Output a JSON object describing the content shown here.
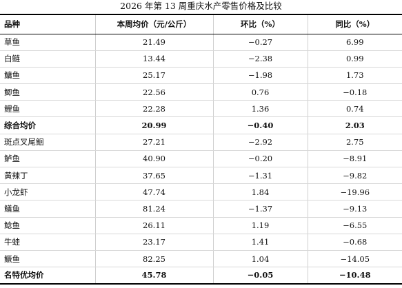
{
  "title": "2026 年第 13 周重庆水产零售价格及比较",
  "headers": [
    "品种",
    "本周均价（元/公斤）",
    "环比（%）",
    "同比（%）"
  ],
  "rows": [
    {
      "name": "草鱼",
      "price": "21.49",
      "mom": "−0.27",
      "yoy": "6.99",
      "summary": false
    },
    {
      "name": "白鲢",
      "price": "13.44",
      "mom": "−2.38",
      "yoy": "0.99",
      "summary": false
    },
    {
      "name": "鳙鱼",
      "price": "25.17",
      "mom": "−1.98",
      "yoy": "1.73",
      "summary": false
    },
    {
      "name": "鲫鱼",
      "price": "22.56",
      "mom": "0.76",
      "yoy": "−0.18",
      "summary": false
    },
    {
      "name": "鲤鱼",
      "price": "22.28",
      "mom": "1.36",
      "yoy": "0.74",
      "summary": false
    },
    {
      "name": "综合均价",
      "price": "20.99",
      "mom": "−0.40",
      "yoy": "2.03",
      "summary": true
    },
    {
      "name": "斑点叉尾鮰",
      "price": "27.21",
      "mom": "−2.92",
      "yoy": "2.75",
      "summary": false
    },
    {
      "name": "鲈鱼",
      "price": "40.90",
      "mom": "−0.20",
      "yoy": "−8.91",
      "summary": false
    },
    {
      "name": "黄辣丁",
      "price": "37.65",
      "mom": "−1.31",
      "yoy": "−9.82",
      "summary": false
    },
    {
      "name": "小龙虾",
      "price": "47.74",
      "mom": "1.84",
      "yoy": "−19.96",
      "summary": false
    },
    {
      "name": "鳝鱼",
      "price": "81.24",
      "mom": "−1.37",
      "yoy": "−9.13",
      "summary": false
    },
    {
      "name": "鲶鱼",
      "price": "26.11",
      "mom": "1.19",
      "yoy": "−6.55",
      "summary": false
    },
    {
      "name": "牛蛙",
      "price": "23.17",
      "mom": "1.41",
      "yoy": "−0.68",
      "summary": false
    },
    {
      "name": "鳜鱼",
      "price": "82.25",
      "mom": "1.04",
      "yoy": "−14.05",
      "summary": false
    },
    {
      "name": "名特优均价",
      "price": "45.78",
      "mom": "−0.05",
      "yoy": "−10.48",
      "summary": true
    }
  ]
}
